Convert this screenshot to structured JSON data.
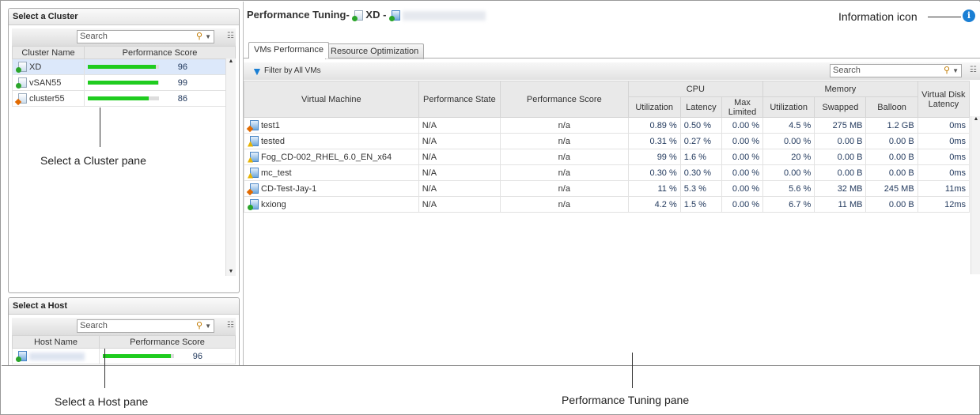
{
  "cluster_pane": {
    "title": "Select a Cluster",
    "search_placeholder": "Search",
    "columns": [
      "Cluster Name",
      "Performance Score"
    ],
    "rows": [
      {
        "name": "XD",
        "score": 96,
        "status": "green",
        "selected": true
      },
      {
        "name": "vSAN55",
        "score": 99,
        "status": "green"
      },
      {
        "name": "cluster55",
        "score": 86,
        "status": "orange"
      }
    ]
  },
  "host_pane": {
    "title": "Select a Host",
    "search_placeholder": "Search",
    "columns": [
      "Host Name",
      "Performance Score"
    ],
    "rows": [
      {
        "name": "",
        "score": 96,
        "status": "green"
      }
    ]
  },
  "main": {
    "title": "Performance Tuning-",
    "cluster": "XD",
    "separator": "-",
    "tabs": [
      {
        "label": "VMs Performance",
        "active": true
      },
      {
        "label": "Resource Optimization"
      }
    ],
    "filter_label": "Filter by All VMs",
    "search_placeholder": "Search",
    "group_headers": {
      "cpu": "CPU",
      "memory": "Memory"
    },
    "columns": {
      "vm": "Virtual Machine",
      "state": "Performance State",
      "score": "Performance Score",
      "cpu_util": "Utilization",
      "cpu_lat": "Latency",
      "cpu_max": "Max Limited",
      "mem_util": "Utilization",
      "mem_swap": "Swapped",
      "mem_balloon": "Balloon",
      "disk": "Virtual Disk Latency"
    },
    "rows": [
      {
        "vm": "test1",
        "status": "orange",
        "state": "N/A",
        "score": "n/a",
        "cpu_util": "0.89 %",
        "cpu_lat": "0.50 %",
        "cpu_max": "0.00 %",
        "mem_util": "4.5 %",
        "mem_swap": "275 MB",
        "mem_balloon": "1.2 GB",
        "disk": "0ms"
      },
      {
        "vm": "tested",
        "status": "yellow",
        "state": "N/A",
        "score": "n/a",
        "cpu_util": "0.31 %",
        "cpu_lat": "0.27 %",
        "cpu_max": "0.00 %",
        "mem_util": "0.00 %",
        "mem_swap": "0.00 B",
        "mem_balloon": "0.00 B",
        "disk": "0ms"
      },
      {
        "vm": "Fog_CD-002_RHEL_6.0_EN_x64",
        "status": "yellow",
        "state": "N/A",
        "score": "n/a",
        "cpu_util": "99 %",
        "cpu_lat": "1.6 %",
        "cpu_max": "0.00 %",
        "mem_util": "20 %",
        "mem_swap": "0.00 B",
        "mem_balloon": "0.00 B",
        "disk": "0ms"
      },
      {
        "vm": "mc_test",
        "status": "yellow",
        "state": "N/A",
        "score": "n/a",
        "cpu_util": "0.30 %",
        "cpu_lat": "0.30 %",
        "cpu_max": "0.00 %",
        "mem_util": "0.00 %",
        "mem_swap": "0.00 B",
        "mem_balloon": "0.00 B",
        "disk": "0ms"
      },
      {
        "vm": "CD-Test-Jay-1",
        "status": "orange",
        "state": "N/A",
        "score": "n/a",
        "cpu_util": "11 %",
        "cpu_lat": "5.3 %",
        "cpu_max": "0.00 %",
        "mem_util": "5.6 %",
        "mem_swap": "32 MB",
        "mem_balloon": "245 MB",
        "disk": "11ms"
      },
      {
        "vm": "kxiong",
        "status": "green",
        "state": "N/A",
        "score": "n/a",
        "cpu_util": "4.2 %",
        "cpu_lat": "1.5 %",
        "cpu_max": "0.00 %",
        "mem_util": "6.7 %",
        "mem_swap": "11 MB",
        "mem_balloon": "0.00 B",
        "disk": "12ms"
      }
    ]
  },
  "annotations": {
    "info": "Information icon",
    "cluster": "Select a Cluster pane",
    "host": "Select a Host pane",
    "tuning": "Performance Tuning pane"
  },
  "colors": {
    "score_bar": "#1fcc1f",
    "info_icon": "#1a7fd4",
    "filter_icon": "#1a7fd4"
  }
}
